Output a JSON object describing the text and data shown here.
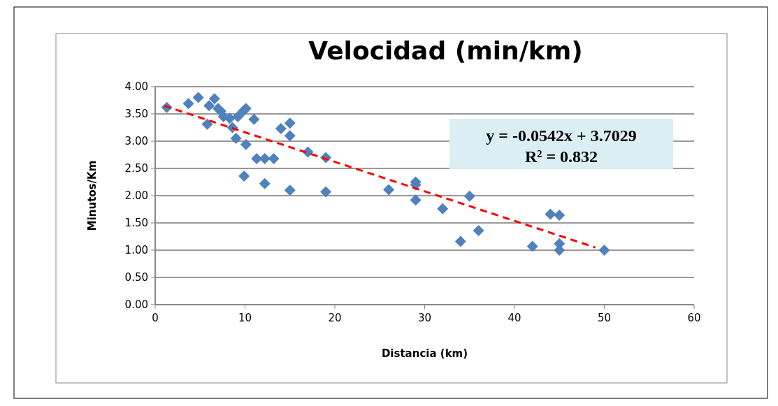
{
  "chart_data": {
    "type": "scatter",
    "title": "Velocidad (min/km)",
    "xlabel": "Distancia  (km)",
    "ylabel": "Minutos/Km",
    "xlim": [
      0,
      60
    ],
    "xticks": [
      0,
      10,
      20,
      30,
      40,
      50,
      60
    ],
    "ylim": [
      0,
      4
    ],
    "yticks": [
      {
        "value": 0,
        "label": "0.00"
      },
      {
        "value": 0.5,
        "label": "0.50"
      },
      {
        "value": 1,
        "label": "1.00"
      },
      {
        "value": 1.5,
        "label": "1.50"
      },
      {
        "value": 2,
        "label": "2.00"
      },
      {
        "value": 2.5,
        "label": "2.50"
      },
      {
        "value": 3,
        "label": "3.00"
      },
      {
        "value": 3.5,
        "label": "3.50"
      },
      {
        "value": 4,
        "label": "4.00"
      }
    ],
    "grid": "y",
    "series": [
      {
        "color": "#4f81bd",
        "marker": "diamond",
        "x": [
          1.3,
          3.7,
          4.8,
          5.8,
          6,
          6.6,
          7,
          7.3,
          7.6,
          8.3,
          8.6,
          9,
          9.2,
          9.8,
          10.1,
          10.1,
          11,
          11.3,
          12.2,
          13.2,
          9.9,
          12.2,
          14,
          15,
          15,
          15,
          17,
          19,
          19,
          26,
          29,
          29,
          29,
          32,
          35,
          34,
          36,
          42,
          44,
          45,
          45,
          45,
          50
        ],
        "values": [
          3.62,
          3.69,
          3.8,
          3.31,
          3.65,
          3.78,
          3.6,
          3.55,
          3.45,
          3.42,
          3.25,
          3.05,
          3.45,
          3.55,
          3.6,
          2.94,
          3.4,
          2.68,
          2.68,
          2.68,
          2.36,
          2.22,
          3.23,
          3.33,
          3.1,
          2.1,
          2.8,
          2.7,
          2.07,
          2.11,
          2.25,
          2.2,
          1.92,
          1.76,
          1.99,
          1.16,
          1.36,
          1.07,
          1.66,
          1.64,
          1.12,
          1.0,
          1.0
        ]
      },
      {
        "type": "line",
        "color": "#ff0000",
        "line_style": "dashed",
        "marker": "none",
        "x": [
          1,
          49
        ],
        "values": [
          3.65,
          1.05
        ]
      }
    ],
    "annotations": [
      "y = -0.0542x + 3.7029",
      "R² = 0.832"
    ]
  }
}
